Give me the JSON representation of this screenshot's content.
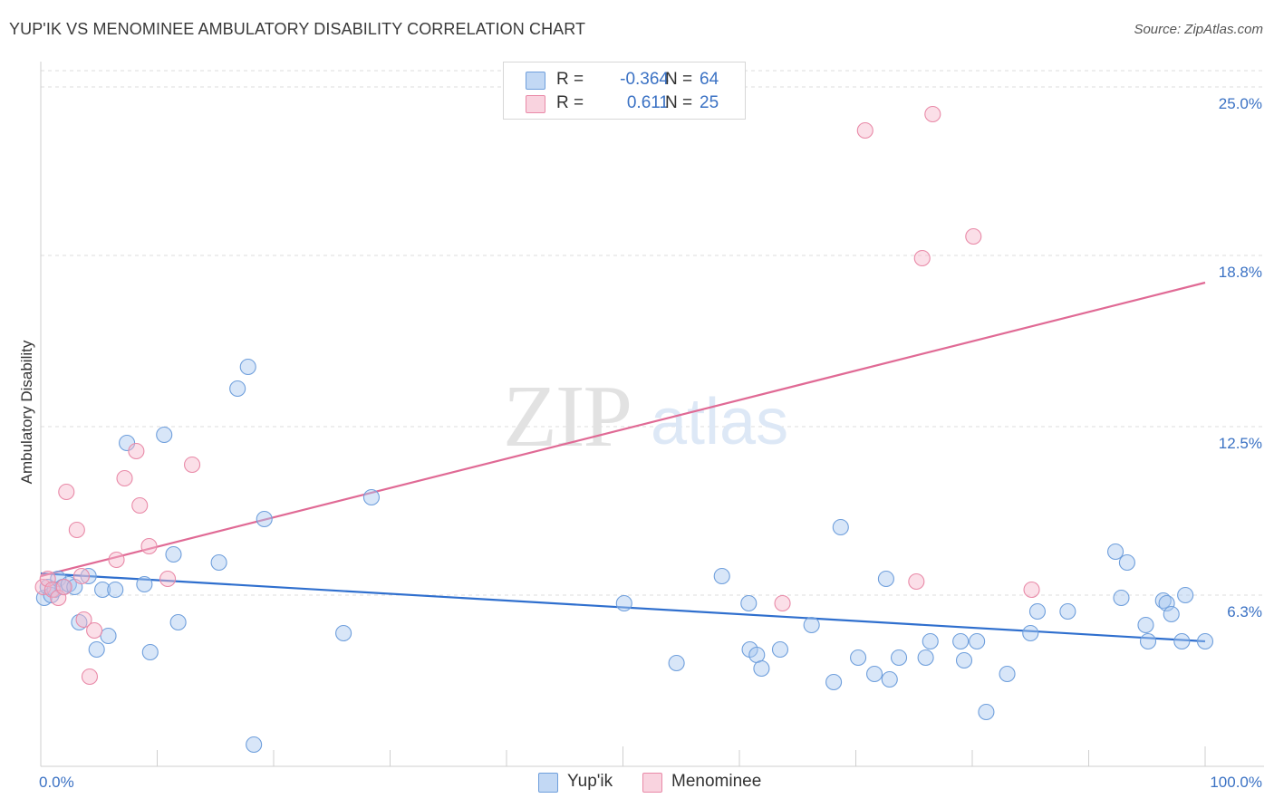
{
  "title": "YUP'IK VS MENOMINEE AMBULATORY DISABILITY CORRELATION CHART",
  "source": "Source: ZipAtlas.com",
  "watermark": {
    "zip": "ZIP",
    "atlas": "atlas"
  },
  "legend": {
    "rows": [
      {
        "label": "R =",
        "r": "-0.364",
        "n_label": "N =",
        "n": "64",
        "color": "#a9c8f0",
        "border": "#6f9fdc"
      },
      {
        "label": "R =",
        "r": "0.611",
        "n_label": "N =",
        "n": "25",
        "color": "#f7c3d2",
        "border": "#e98aa8"
      }
    ]
  },
  "bottom_legend": [
    {
      "name": "Yup'ik",
      "color": "#a9c8f0",
      "border": "#6f9fdc"
    },
    {
      "name": "Menominee",
      "color": "#f7c3d2",
      "border": "#e98aa8"
    }
  ],
  "chart_data": {
    "type": "scatter",
    "ylabel": "Ambulatory Disability",
    "xlabel": "",
    "xlim": [
      0,
      100
    ],
    "ylim": [
      0,
      25
    ],
    "x_tick_labels": [
      "0.0%",
      "100.0%"
    ],
    "y_ticks": [
      6.3,
      12.5,
      18.8,
      25.0
    ],
    "y_tick_labels": [
      "6.3%",
      "12.5%",
      "18.8%",
      "25.0%"
    ],
    "grid": true,
    "series": [
      {
        "name": "Yup'ik",
        "color": "#8ab6ea",
        "line_color": "#2f6fce",
        "trend": {
          "x": [
            0,
            100
          ],
          "y": [
            7.1,
            4.6
          ]
        },
        "points": [
          [
            0.3,
            6.2
          ],
          [
            0.6,
            6.6
          ],
          [
            0.9,
            6.3
          ],
          [
            1.2,
            6.5
          ],
          [
            1.5,
            6.9
          ],
          [
            1.9,
            6.6
          ],
          [
            2.4,
            6.7
          ],
          [
            2.9,
            6.6
          ],
          [
            3.3,
            5.3
          ],
          [
            4.1,
            7.0
          ],
          [
            4.8,
            4.3
          ],
          [
            5.3,
            6.5
          ],
          [
            5.8,
            4.8
          ],
          [
            6.4,
            6.5
          ],
          [
            7.4,
            11.9
          ],
          [
            8.9,
            6.7
          ],
          [
            9.4,
            4.2
          ],
          [
            10.6,
            12.2
          ],
          [
            11.4,
            7.8
          ],
          [
            11.8,
            5.3
          ],
          [
            15.3,
            7.5
          ],
          [
            16.9,
            13.9
          ],
          [
            17.8,
            14.7
          ],
          [
            18.3,
            0.8
          ],
          [
            19.2,
            9.1
          ],
          [
            26.0,
            4.9
          ],
          [
            28.4,
            9.9
          ],
          [
            50.1,
            6.0
          ],
          [
            54.6,
            3.8
          ],
          [
            58.5,
            7.0
          ],
          [
            60.8,
            6.0
          ],
          [
            60.9,
            4.3
          ],
          [
            61.5,
            4.1
          ],
          [
            61.9,
            3.6
          ],
          [
            63.5,
            4.3
          ],
          [
            66.2,
            5.2
          ],
          [
            68.1,
            3.1
          ],
          [
            68.7,
            8.8
          ],
          [
            70.2,
            4.0
          ],
          [
            71.6,
            3.4
          ],
          [
            72.6,
            6.9
          ],
          [
            72.9,
            3.2
          ],
          [
            73.7,
            4.0
          ],
          [
            76.0,
            4.0
          ],
          [
            76.4,
            4.6
          ],
          [
            79.0,
            4.6
          ],
          [
            79.3,
            3.9
          ],
          [
            80.4,
            4.6
          ],
          [
            81.2,
            2.0
          ],
          [
            83.0,
            3.4
          ],
          [
            85.0,
            4.9
          ],
          [
            85.6,
            5.7
          ],
          [
            88.2,
            5.7
          ],
          [
            92.3,
            7.9
          ],
          [
            92.8,
            6.2
          ],
          [
            93.3,
            7.5
          ],
          [
            94.9,
            5.2
          ],
          [
            95.1,
            4.6
          ],
          [
            96.4,
            6.1
          ],
          [
            96.7,
            6.0
          ],
          [
            97.1,
            5.6
          ],
          [
            98.0,
            4.6
          ],
          [
            98.3,
            6.3
          ],
          [
            100.0,
            4.6
          ]
        ]
      },
      {
        "name": "Menominee",
        "color": "#f4b1c6",
        "line_color": "#e06a95",
        "trend": {
          "x": [
            0,
            100
          ],
          "y": [
            7.0,
            17.8
          ]
        },
        "points": [
          [
            0.2,
            6.6
          ],
          [
            0.6,
            6.9
          ],
          [
            1.0,
            6.5
          ],
          [
            1.5,
            6.2
          ],
          [
            2.0,
            6.6
          ],
          [
            2.2,
            10.1
          ],
          [
            3.1,
            8.7
          ],
          [
            3.5,
            7.0
          ],
          [
            3.7,
            5.4
          ],
          [
            4.2,
            3.3
          ],
          [
            4.6,
            5.0
          ],
          [
            6.5,
            7.6
          ],
          [
            7.2,
            10.6
          ],
          [
            8.2,
            11.6
          ],
          [
            8.5,
            9.6
          ],
          [
            9.3,
            8.1
          ],
          [
            10.9,
            6.9
          ],
          [
            13.0,
            11.1
          ],
          [
            70.8,
            23.4
          ],
          [
            75.2,
            6.8
          ],
          [
            75.7,
            18.7
          ],
          [
            76.6,
            24.0
          ],
          [
            80.1,
            19.5
          ],
          [
            63.7,
            6.0
          ],
          [
            85.1,
            6.5
          ]
        ]
      }
    ]
  }
}
